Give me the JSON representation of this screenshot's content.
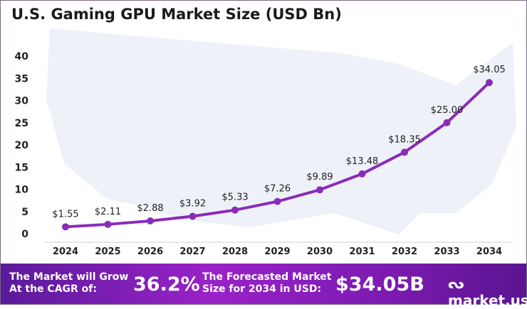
{
  "chart_data": {
    "type": "line",
    "title": "U.S. Gaming GPU Market Size (USD Bn)",
    "xlabel": "",
    "ylabel": "",
    "categories": [
      "2024",
      "2025",
      "2026",
      "2027",
      "2028",
      "2029",
      "2030",
      "2031",
      "2032",
      "2033",
      "2034"
    ],
    "values": [
      1.55,
      2.11,
      2.88,
      3.92,
      5.33,
      7.26,
      9.89,
      13.48,
      18.35,
      25.0,
      34.05
    ],
    "data_labels": [
      "$1.55",
      "$2.11",
      "$2.88",
      "$3.92",
      "$5.33",
      "$7.26",
      "$9.89",
      "$13.48",
      "$18.35",
      "$25.00",
      "$34.05"
    ],
    "yticks": [
      "0",
      "5",
      "10",
      "15",
      "20",
      "25",
      "30",
      "35",
      "40"
    ],
    "ylim": [
      0,
      40
    ],
    "grid": false,
    "line_color": "#8a2bb8"
  },
  "banner": {
    "cagr_label_1": "The Market will Grow",
    "cagr_label_2": "At the CAGR of:",
    "cagr_value": "36.2%",
    "forecast_label_1": "The Forecasted Market",
    "forecast_label_2": "Size for 2034 in USD:",
    "forecast_value": "$34.05B",
    "brand": "market.us"
  }
}
